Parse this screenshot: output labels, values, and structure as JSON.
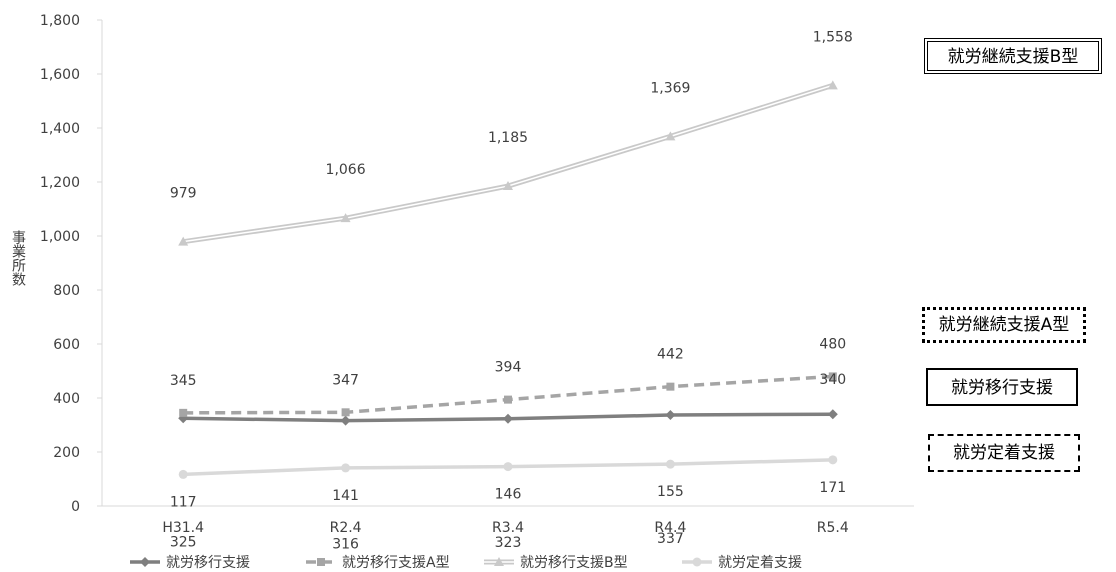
{
  "chart_data": {
    "type": "line",
    "categories": [
      "H31.4",
      "R2.4",
      "R3.4",
      "R4.4",
      "R5.4"
    ],
    "ylabel": "事業所数",
    "ylim": [
      0,
      1800
    ],
    "yticks": [
      "0",
      "200",
      "400",
      "600",
      "800",
      "1,000",
      "1,200",
      "1,400",
      "1,600",
      "1,800"
    ],
    "grid": false,
    "legend_position": "bottom",
    "series": [
      {
        "name": "就労移行支援",
        "values": [
          325,
          316,
          323,
          337,
          340
        ],
        "labels": [
          "325",
          "316",
          "323",
          "337",
          "340"
        ],
        "color": "#7f7f7f",
        "style": "solid",
        "marker": "diamond"
      },
      {
        "name": "就労移行支援A型",
        "values": [
          345,
          347,
          394,
          442,
          480
        ],
        "labels": [
          "345",
          "347",
          "394",
          "442",
          "480"
        ],
        "color": "#a5a5a5",
        "style": "dashed",
        "marker": "square"
      },
      {
        "name": "就労移行支援B型",
        "values": [
          979,
          1066,
          1185,
          1369,
          1558
        ],
        "labels": [
          "979",
          "1,066",
          "1,185",
          "1,369",
          "1,558"
        ],
        "color": "#c9c9c9",
        "style": "double",
        "marker": "triangle"
      },
      {
        "name": "就労定着支援",
        "values": [
          117,
          141,
          146,
          155,
          171
        ],
        "labels": [
          "117",
          "141",
          "146",
          "155",
          "171"
        ],
        "color": "#d9d9d9",
        "style": "solid",
        "marker": "circle"
      }
    ],
    "annotations": [
      "就労継続支援B型",
      "就労継続支援A型",
      "就労移行支援",
      "就労定着支援"
    ]
  }
}
